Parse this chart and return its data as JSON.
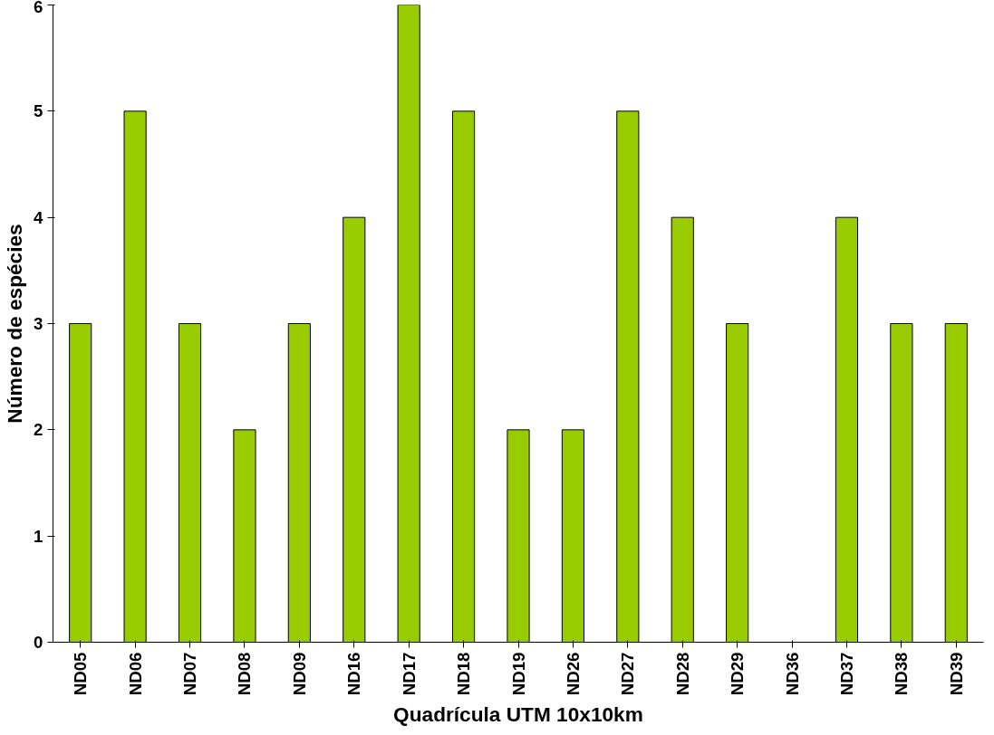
{
  "chart_data": {
    "type": "bar",
    "xlabel": "Quadrícula UTM 10x10km",
    "ylabel": "Número de espécies",
    "categories": [
      "ND05",
      "ND06",
      "ND07",
      "ND08",
      "ND09",
      "ND16",
      "ND17",
      "ND18",
      "ND19",
      "ND26",
      "ND27",
      "ND28",
      "ND29",
      "ND36",
      "ND37",
      "ND38",
      "ND39"
    ],
    "values": [
      3,
      5,
      3,
      2,
      3,
      4,
      6,
      5,
      2,
      2,
      5,
      4,
      3,
      0,
      4,
      3,
      3
    ],
    "color": "#99cc00",
    "ylim": [
      0,
      6
    ],
    "yticks": [
      0,
      1,
      2,
      3,
      4,
      5,
      6
    ],
    "grid": false
  }
}
